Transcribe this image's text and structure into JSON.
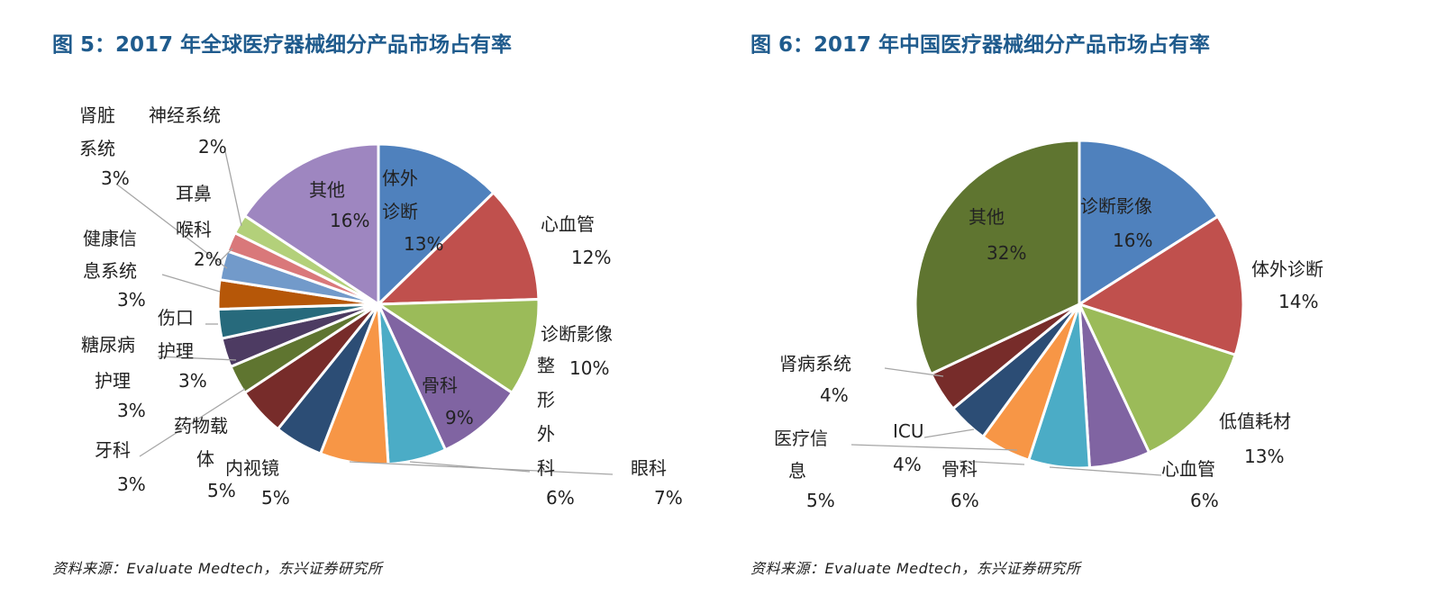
{
  "chart_data": [
    {
      "type": "pie",
      "title": "图 5：2017 年全球医疗器械细分产品市场占有率",
      "source": "资料来源：Evaluate Medtech，东兴证券研究所",
      "slices": [
        {
          "label": "体外诊断",
          "value": 13,
          "pct": "13%",
          "color": "#4f81bd"
        },
        {
          "label": "心血管",
          "value": 12,
          "pct": "12%",
          "color": "#c0504d"
        },
        {
          "label": "诊断影像",
          "value": 10,
          "pct": "10%",
          "color": "#9bbb59"
        },
        {
          "label": "骨科",
          "value": 9,
          "pct": "9%",
          "color": "#8064a2"
        },
        {
          "label": "整形外科",
          "value": 6,
          "pct": "6%",
          "color": "#4bacc6"
        },
        {
          "label": "眼科",
          "value": 7,
          "pct": "7%",
          "color": "#f79646"
        },
        {
          "label": "内视镜",
          "value": 5,
          "pct": "5%",
          "color": "#2c4d75"
        },
        {
          "label": "药物载体",
          "value": 5,
          "pct": "5%",
          "color": "#772c2a"
        },
        {
          "label": "牙科",
          "value": 3,
          "pct": "3%",
          "color": "#5f7530"
        },
        {
          "label": "糖尿病护理",
          "value": 3,
          "pct": "3%",
          "color": "#4d3b62"
        },
        {
          "label": "伤口护理",
          "value": 3,
          "pct": "3%",
          "color": "#276a7c"
        },
        {
          "label": "健康信息系统",
          "value": 3,
          "pct": "3%",
          "color": "#b65708"
        },
        {
          "label": "肾脏系统",
          "value": 3,
          "pct": "3%",
          "color": "#729aca"
        },
        {
          "label": "耳鼻喉科",
          "value": 2,
          "pct": "2%",
          "color": "#d9787a"
        },
        {
          "label": "神经系统",
          "value": 2,
          "pct": "2%",
          "color": "#b3d07a"
        },
        {
          "label": "其他",
          "value": 16,
          "pct": "16%",
          "color": "#9e86c0"
        }
      ]
    },
    {
      "type": "pie",
      "title": "图 6：2017 年中国医疗器械细分产品市场占有率",
      "source": "资料来源：Evaluate Medtech，东兴证券研究所",
      "slices": [
        {
          "label": "诊断影像",
          "value": 16,
          "pct": "16%",
          "color": "#4f81bd"
        },
        {
          "label": "体外诊断",
          "value": 14,
          "pct": "14%",
          "color": "#c0504d"
        },
        {
          "label": "低值耗材",
          "value": 13,
          "pct": "13%",
          "color": "#9bbb59"
        },
        {
          "label": "心血管",
          "value": 6,
          "pct": "6%",
          "color": "#8064a2"
        },
        {
          "label": "骨科",
          "value": 6,
          "pct": "6%",
          "color": "#4bacc6"
        },
        {
          "label": "医疗信息",
          "value": 5,
          "pct": "5%",
          "color": "#f79646"
        },
        {
          "label": "ICU",
          "value": 4,
          "pct": "4%",
          "color": "#2c4d75"
        },
        {
          "label": "肾病系统",
          "value": 4,
          "pct": "4%",
          "color": "#772c2a"
        },
        {
          "label": "其他",
          "value": 32,
          "pct": "32%",
          "color": "#5f7530"
        }
      ]
    }
  ]
}
